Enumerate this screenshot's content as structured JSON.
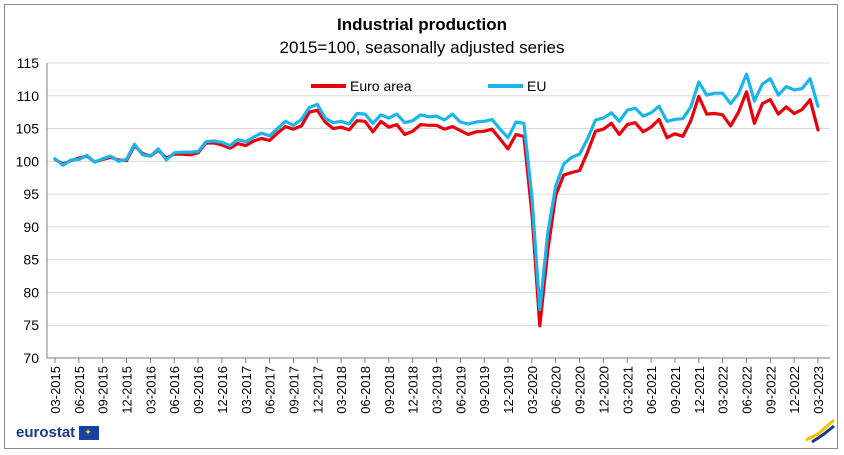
{
  "chart_data": {
    "type": "line",
    "title": "Industrial production",
    "subtitle": "2015=100, seasonally adjusted series",
    "ylim": [
      70,
      115
    ],
    "yticks": [
      70,
      75,
      80,
      85,
      90,
      95,
      100,
      105,
      110,
      115
    ],
    "xtick_labels": [
      "03-2015",
      "06-2015",
      "09-2015",
      "12-2015",
      "03-2016",
      "06-2016",
      "09-2016",
      "12-2016",
      "03-2017",
      "06-2017",
      "09-2017",
      "12-2017",
      "03-2018",
      "06-2018",
      "09-2018",
      "12-2018",
      "03-2019",
      "06-2019",
      "09-2019",
      "12-2019",
      "03-2020",
      "06-2020",
      "09-2020",
      "12-2020",
      "03-2021",
      "06-2021",
      "09-2021",
      "12-2021",
      "03-2022",
      "06-2022",
      "09-2022",
      "12-2022",
      "03-2023"
    ],
    "grid": true,
    "legend_position": "top-center",
    "series": [
      {
        "name": "Euro area",
        "color": "#e8000b",
        "values": [
          100.3,
          99.6,
          100.1,
          100.5,
          100.8,
          99.9,
          100.3,
          100.6,
          100.2,
          100.1,
          102.4,
          101.2,
          100.8,
          101.7,
          100.5,
          101.1,
          101.1,
          101.0,
          101.3,
          102.8,
          102.8,
          102.5,
          102.0,
          102.7,
          102.4,
          103.1,
          103.5,
          103.2,
          104.3,
          105.3,
          104.9,
          105.4,
          107.5,
          107.8,
          106.0,
          105.0,
          105.2,
          104.8,
          106.2,
          106.1,
          104.5,
          106.1,
          105.2,
          105.6,
          104.1,
          104.6,
          105.6,
          105.5,
          105.5,
          104.9,
          105.3,
          104.7,
          104.1,
          104.5,
          104.6,
          104.9,
          103.4,
          101.9,
          104.1,
          103.8,
          92.1,
          74.9,
          86.4,
          94.8,
          97.9,
          98.3,
          98.6,
          101.4,
          104.6,
          104.9,
          105.8,
          104.1,
          105.6,
          105.9,
          104.5,
          105.2,
          106.4,
          103.6,
          104.2,
          103.8,
          106.2,
          109.9,
          107.2,
          107.3,
          107.1,
          105.4,
          107.5,
          110.6,
          105.8,
          108.8,
          109.4,
          107.2,
          108.3,
          107.3,
          107.9,
          109.4,
          104.8
        ]
      },
      {
        "name": "EU",
        "color": "#1ab5ea",
        "values": [
          100.4,
          99.4,
          100.2,
          100.3,
          100.9,
          99.9,
          100.4,
          100.8,
          100.0,
          100.3,
          102.6,
          101.0,
          100.8,
          101.9,
          100.2,
          101.3,
          101.4,
          101.4,
          101.5,
          103.0,
          103.1,
          102.9,
          102.4,
          103.3,
          103.0,
          103.7,
          104.3,
          103.9,
          105.0,
          106.1,
          105.5,
          106.4,
          108.2,
          108.7,
          106.6,
          105.9,
          106.1,
          105.7,
          107.3,
          107.2,
          105.8,
          107.1,
          106.6,
          107.2,
          105.9,
          106.2,
          107.1,
          106.8,
          106.9,
          106.3,
          107.2,
          106.0,
          105.7,
          106.0,
          106.1,
          106.4,
          104.9,
          103.6,
          106.0,
          105.8,
          94.6,
          77.4,
          89.1,
          96.2,
          99.6,
          100.6,
          101.1,
          103.4,
          106.3,
          106.6,
          107.4,
          106.1,
          107.8,
          108.1,
          106.9,
          107.4,
          108.4,
          106.1,
          106.4,
          106.5,
          108.3,
          112.1,
          110.1,
          110.4,
          110.4,
          108.8,
          110.3,
          113.3,
          109.2,
          111.8,
          112.6,
          110.1,
          111.4,
          110.9,
          111.1,
          112.6,
          108.4
        ]
      }
    ]
  },
  "branding": {
    "logo_text": "eurostat"
  }
}
